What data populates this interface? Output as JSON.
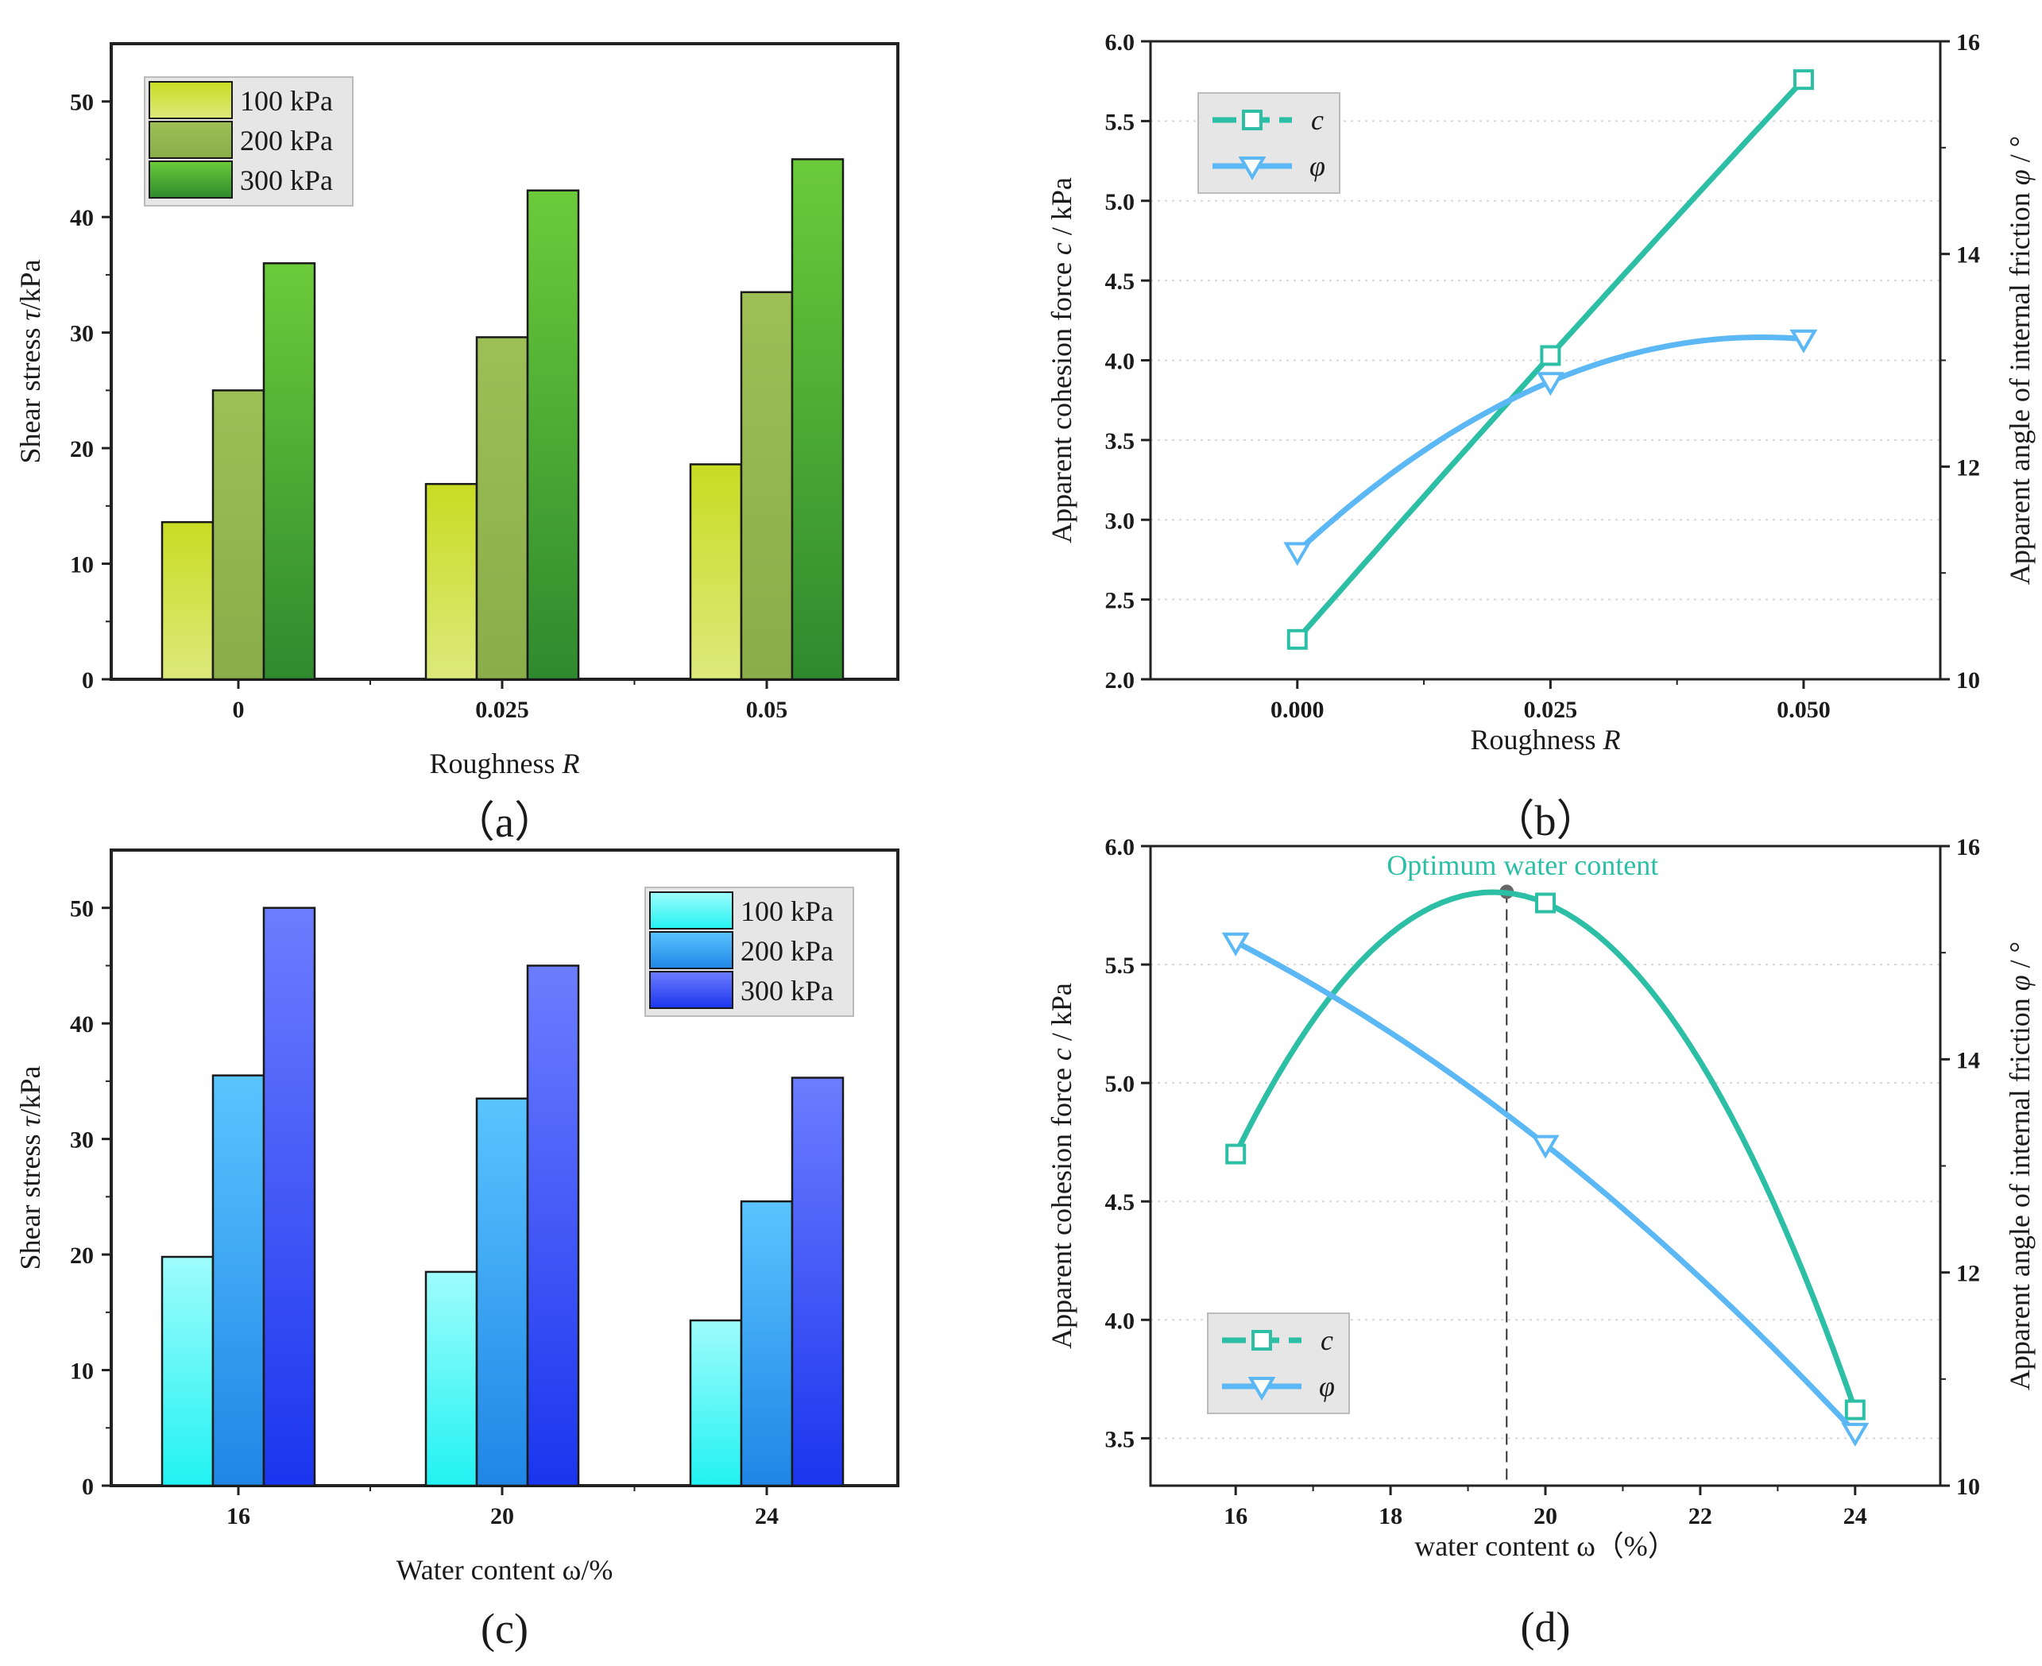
{
  "figure": {
    "panels": [
      "a",
      "b",
      "c",
      "d"
    ],
    "panel_labels": [
      "（a）",
      "（b）",
      "(c)",
      "(d)"
    ]
  },
  "chart_data": [
    {
      "id": "a",
      "type": "bar",
      "categories": [
        "0",
        "0.025",
        "0.05"
      ],
      "series": [
        {
          "name": "100 kPa",
          "values": [
            13.6,
            16.9,
            18.6
          ],
          "colors": [
            "#dce97c",
            "#c8dc22"
          ]
        },
        {
          "name": "200 kPa",
          "values": [
            25.0,
            29.6,
            33.5
          ],
          "colors": [
            "#8aad4a",
            "#9dbf55"
          ]
        },
        {
          "name": "300 kPa",
          "values": [
            36.0,
            42.3,
            45.0
          ],
          "colors": [
            "#2e8a2e",
            "#6ccb3a"
          ]
        }
      ],
      "xlabel": "Roughness R",
      "ylabel": "Shear stress τ/kPa",
      "ylim": [
        0,
        55
      ],
      "yticks": [
        0,
        10,
        20,
        30,
        40,
        50
      ],
      "legend": "top-left"
    },
    {
      "id": "b",
      "type": "line",
      "x": [
        0.0,
        0.025,
        0.05
      ],
      "xticks": [
        "0.000",
        "0.025",
        "0.050"
      ],
      "xlim": [
        -0.0145,
        0.0635
      ],
      "series": [
        {
          "name": "c",
          "axis": "left",
          "values": [
            2.25,
            4.03,
            5.76
          ],
          "color": "#2cbfa6",
          "marker": "square"
        },
        {
          "name": "φ",
          "axis": "right",
          "values": [
            11.2,
            12.8,
            13.2
          ],
          "color": "#5bb8f5",
          "marker": "triangle-down"
        }
      ],
      "xlabel": "Roughness R",
      "ylabel_left": "Apparent cohesion force c / kPa",
      "ylabel_right": "Apparent angle of internal friction φ / °",
      "ylim_left": [
        2.0,
        6.0
      ],
      "yticks_left": [
        "2.0",
        "2.5",
        "3.0",
        "3.5",
        "4.0",
        "4.5",
        "5.0",
        "5.5",
        "6.0"
      ],
      "ylim_right": [
        10,
        16
      ],
      "yticks_right": [
        "10",
        "12",
        "14",
        "16"
      ],
      "legend": "top-left"
    },
    {
      "id": "c",
      "type": "bar",
      "categories": [
        "16",
        "20",
        "24"
      ],
      "series": [
        {
          "name": "100 kPa",
          "values": [
            19.8,
            18.5,
            14.3
          ],
          "colors": [
            "#22f2f2",
            "#9ffcfc"
          ]
        },
        {
          "name": "200 kPa",
          "values": [
            35.5,
            33.5,
            24.6
          ],
          "colors": [
            "#1f86e6",
            "#5ac4ff"
          ]
        },
        {
          "name": "300 kPa",
          "values": [
            50.0,
            45.0,
            35.3
          ],
          "colors": [
            "#1a35ee",
            "#6d7dff"
          ]
        }
      ],
      "xlabel": "Water content ω/%",
      "ylabel": "Shear stress τ/kPa",
      "ylim": [
        0,
        55
      ],
      "yticks": [
        0,
        10,
        20,
        30,
        40,
        50
      ],
      "legend": "top-right"
    },
    {
      "id": "d",
      "type": "line",
      "x": [
        16,
        20,
        24
      ],
      "xticks": [
        "16",
        "18",
        "20",
        "22",
        "24"
      ],
      "xlim": [
        14.9,
        25.1
      ],
      "series": [
        {
          "name": "c",
          "axis": "left",
          "values": [
            4.7,
            5.76,
            3.62
          ],
          "color": "#2cbfa6",
          "marker": "square"
        },
        {
          "name": "φ",
          "axis": "right",
          "values": [
            15.1,
            13.2,
            10.5
          ],
          "color": "#5bb8f5",
          "marker": "triangle-down"
        }
      ],
      "annotation": {
        "text": "Optimum water content",
        "x": 19.5,
        "y": 5.76
      },
      "xlabel": "water content ω（%）",
      "ylabel_left": "Apparent cohesion force c / kPa",
      "ylabel_right": "Apparent angle of internal friction φ / °",
      "ylim_left": [
        3.3,
        6.0
      ],
      "yticks_left": [
        "3.5",
        "4.0",
        "4.5",
        "5.0",
        "5.5",
        "6.0"
      ],
      "ylim_right": [
        10,
        16
      ],
      "yticks_right": [
        "10",
        "12",
        "14",
        "16"
      ],
      "legend": "bottom-left"
    }
  ]
}
